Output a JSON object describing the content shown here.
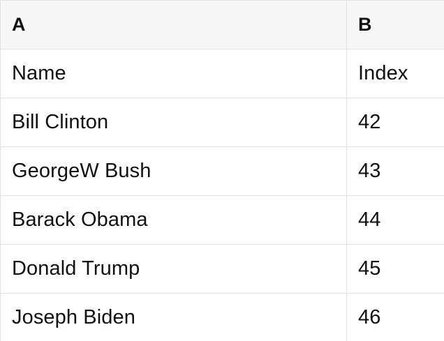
{
  "table": {
    "header": {
      "col_a": "A",
      "col_b": "B"
    },
    "rows": [
      {
        "a": "Name",
        "b": "Index"
      },
      {
        "a": "Bill Clinton",
        "b": "42"
      },
      {
        "a": "GeorgeW Bush",
        "b": "43"
      },
      {
        "a": "Barack Obama",
        "b": "44"
      },
      {
        "a": "Donald Trump",
        "b": "45"
      },
      {
        "a": "Joseph Biden",
        "b": "46"
      }
    ],
    "colors": {
      "header_bg": "#f7f7f7",
      "row_bg": "#ffffff",
      "border": "#e2e2e2",
      "text": "#111111"
    }
  }
}
